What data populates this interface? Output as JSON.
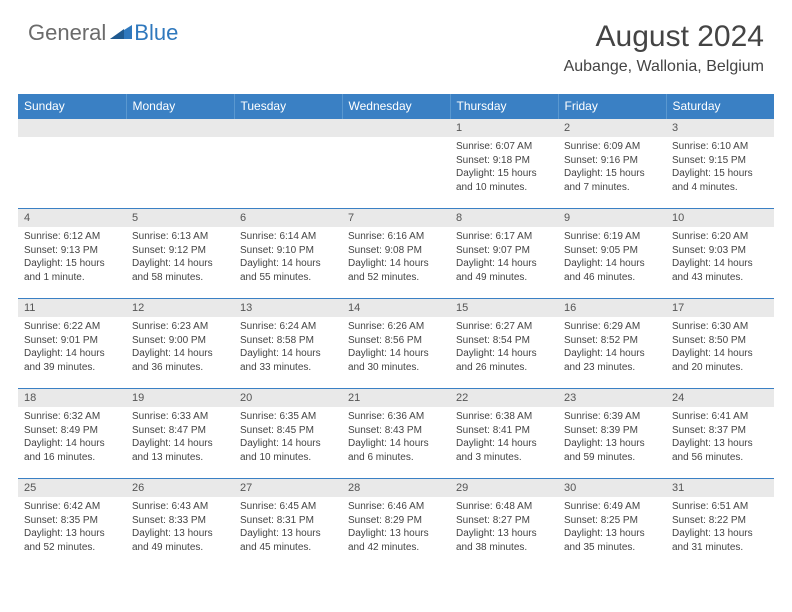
{
  "logo": {
    "general": "General",
    "blue": "Blue"
  },
  "title": "August 2024",
  "location": "Aubange, Wallonia, Belgium",
  "colors": {
    "header_bg": "#3a80c4",
    "header_text": "#ffffff",
    "daynum_bg": "#e9e9e9",
    "border": "#3a80c4",
    "logo_gray": "#6b6b6b",
    "logo_blue": "#2f78bd"
  },
  "day_labels": [
    "Sunday",
    "Monday",
    "Tuesday",
    "Wednesday",
    "Thursday",
    "Friday",
    "Saturday"
  ],
  "weeks": [
    [
      null,
      null,
      null,
      null,
      {
        "n": "1",
        "sr": "6:07 AM",
        "ss": "9:18 PM",
        "dl": "15 hours and 10 minutes."
      },
      {
        "n": "2",
        "sr": "6:09 AM",
        "ss": "9:16 PM",
        "dl": "15 hours and 7 minutes."
      },
      {
        "n": "3",
        "sr": "6:10 AM",
        "ss": "9:15 PM",
        "dl": "15 hours and 4 minutes."
      }
    ],
    [
      {
        "n": "4",
        "sr": "6:12 AM",
        "ss": "9:13 PM",
        "dl": "15 hours and 1 minute."
      },
      {
        "n": "5",
        "sr": "6:13 AM",
        "ss": "9:12 PM",
        "dl": "14 hours and 58 minutes."
      },
      {
        "n": "6",
        "sr": "6:14 AM",
        "ss": "9:10 PM",
        "dl": "14 hours and 55 minutes."
      },
      {
        "n": "7",
        "sr": "6:16 AM",
        "ss": "9:08 PM",
        "dl": "14 hours and 52 minutes."
      },
      {
        "n": "8",
        "sr": "6:17 AM",
        "ss": "9:07 PM",
        "dl": "14 hours and 49 minutes."
      },
      {
        "n": "9",
        "sr": "6:19 AM",
        "ss": "9:05 PM",
        "dl": "14 hours and 46 minutes."
      },
      {
        "n": "10",
        "sr": "6:20 AM",
        "ss": "9:03 PM",
        "dl": "14 hours and 43 minutes."
      }
    ],
    [
      {
        "n": "11",
        "sr": "6:22 AM",
        "ss": "9:01 PM",
        "dl": "14 hours and 39 minutes."
      },
      {
        "n": "12",
        "sr": "6:23 AM",
        "ss": "9:00 PM",
        "dl": "14 hours and 36 minutes."
      },
      {
        "n": "13",
        "sr": "6:24 AM",
        "ss": "8:58 PM",
        "dl": "14 hours and 33 minutes."
      },
      {
        "n": "14",
        "sr": "6:26 AM",
        "ss": "8:56 PM",
        "dl": "14 hours and 30 minutes."
      },
      {
        "n": "15",
        "sr": "6:27 AM",
        "ss": "8:54 PM",
        "dl": "14 hours and 26 minutes."
      },
      {
        "n": "16",
        "sr": "6:29 AM",
        "ss": "8:52 PM",
        "dl": "14 hours and 23 minutes."
      },
      {
        "n": "17",
        "sr": "6:30 AM",
        "ss": "8:50 PM",
        "dl": "14 hours and 20 minutes."
      }
    ],
    [
      {
        "n": "18",
        "sr": "6:32 AM",
        "ss": "8:49 PM",
        "dl": "14 hours and 16 minutes."
      },
      {
        "n": "19",
        "sr": "6:33 AM",
        "ss": "8:47 PM",
        "dl": "14 hours and 13 minutes."
      },
      {
        "n": "20",
        "sr": "6:35 AM",
        "ss": "8:45 PM",
        "dl": "14 hours and 10 minutes."
      },
      {
        "n": "21",
        "sr": "6:36 AM",
        "ss": "8:43 PM",
        "dl": "14 hours and 6 minutes."
      },
      {
        "n": "22",
        "sr": "6:38 AM",
        "ss": "8:41 PM",
        "dl": "14 hours and 3 minutes."
      },
      {
        "n": "23",
        "sr": "6:39 AM",
        "ss": "8:39 PM",
        "dl": "13 hours and 59 minutes."
      },
      {
        "n": "24",
        "sr": "6:41 AM",
        "ss": "8:37 PM",
        "dl": "13 hours and 56 minutes."
      }
    ],
    [
      {
        "n": "25",
        "sr": "6:42 AM",
        "ss": "8:35 PM",
        "dl": "13 hours and 52 minutes."
      },
      {
        "n": "26",
        "sr": "6:43 AM",
        "ss": "8:33 PM",
        "dl": "13 hours and 49 minutes."
      },
      {
        "n": "27",
        "sr": "6:45 AM",
        "ss": "8:31 PM",
        "dl": "13 hours and 45 minutes."
      },
      {
        "n": "28",
        "sr": "6:46 AM",
        "ss": "8:29 PM",
        "dl": "13 hours and 42 minutes."
      },
      {
        "n": "29",
        "sr": "6:48 AM",
        "ss": "8:27 PM",
        "dl": "13 hours and 38 minutes."
      },
      {
        "n": "30",
        "sr": "6:49 AM",
        "ss": "8:25 PM",
        "dl": "13 hours and 35 minutes."
      },
      {
        "n": "31",
        "sr": "6:51 AM",
        "ss": "8:22 PM",
        "dl": "13 hours and 31 minutes."
      }
    ]
  ],
  "labels": {
    "sunrise": "Sunrise:",
    "sunset": "Sunset:",
    "daylight": "Daylight:"
  }
}
